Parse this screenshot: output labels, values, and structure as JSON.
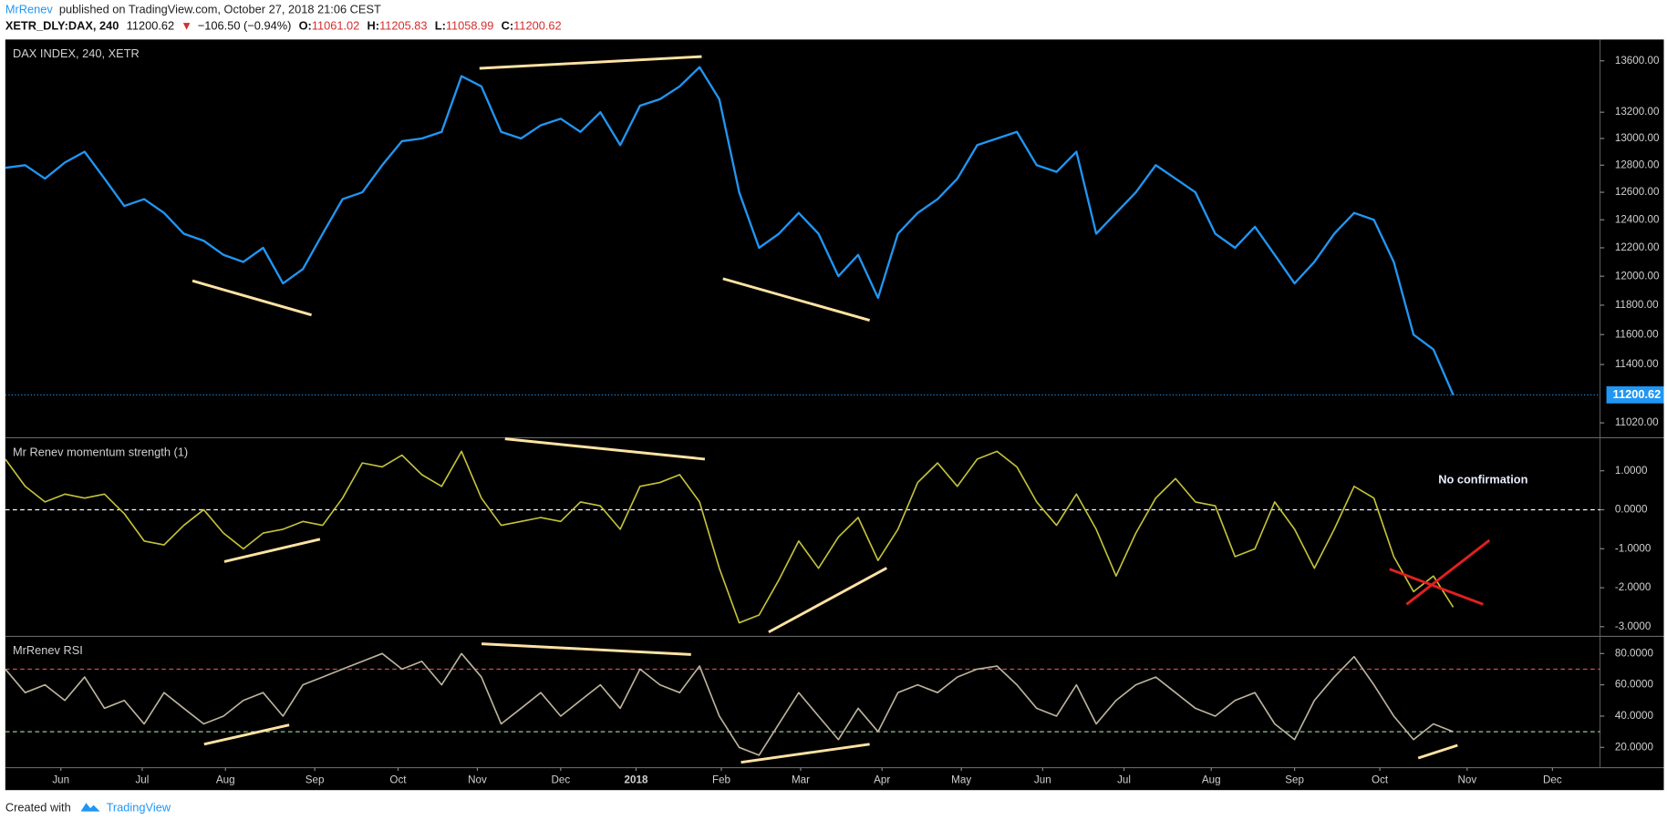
{
  "header": {
    "author": "MrRenev",
    "published": "published on TradingView.com, October 27, 2018 21:06 CEST",
    "symbol": "XETR_DLY:DAX, 240",
    "last": "11200.62",
    "change": "−106.50 (−0.94%)",
    "ohlc": [
      {
        "key": "O:",
        "value": "11061.02"
      },
      {
        "key": "H:",
        "value": "11205.83"
      },
      {
        "key": "L:",
        "value": "11058.99"
      },
      {
        "key": "C:",
        "value": "11200.62"
      }
    ]
  },
  "footer": {
    "created": "Created with",
    "brand": "TradingView"
  },
  "chart_data": [
    {
      "type": "line",
      "title": "DAX INDEX, 240, XETR",
      "log": true,
      "color": "#2196f3",
      "price_line": true,
      "x": [
        0,
        1,
        2,
        3,
        4,
        5,
        6,
        7,
        8,
        9,
        10,
        11,
        12,
        13,
        14,
        15,
        16,
        17,
        18,
        19,
        20,
        21,
        22,
        23,
        24,
        25,
        26,
        27,
        28,
        29,
        30,
        31,
        32,
        33,
        34,
        35,
        36,
        37,
        38,
        39,
        40,
        41,
        42,
        43,
        44,
        45,
        46,
        47,
        48,
        49,
        50,
        51,
        52,
        53,
        54,
        55,
        56,
        57,
        58,
        59,
        60,
        61,
        62,
        63,
        64,
        65,
        66,
        67,
        68,
        69,
        70,
        71,
        72,
        73
      ],
      "values": [
        12780,
        12800,
        12700,
        12820,
        12900,
        12700,
        12500,
        12550,
        12450,
        12300,
        12250,
        12150,
        12100,
        12200,
        11950,
        12050,
        12300,
        12550,
        12600,
        12800,
        12980,
        13000,
        13050,
        13480,
        13400,
        13050,
        13000,
        13100,
        13150,
        13050,
        13200,
        12950,
        13250,
        13300,
        13400,
        13550,
        13300,
        12600,
        12200,
        12300,
        12450,
        12300,
        12000,
        12150,
        11850,
        12300,
        12450,
        12550,
        12700,
        12950,
        13000,
        13050,
        12800,
        12750,
        12900,
        12300,
        12450,
        12600,
        12800,
        12700,
        12600,
        12300,
        12200,
        12350,
        12150,
        11950,
        12100,
        12300,
        12450,
        12400,
        12100,
        11600,
        11500,
        11200.62
      ],
      "xlim": [
        0,
        80.4
      ],
      "ylim": [
        10925,
        13761
      ],
      "yticks": [
        {
          "value": 11020,
          "label": "11020.00"
        },
        {
          "value": 11400,
          "label": "11400.00"
        },
        {
          "value": 11600,
          "label": "11600.00"
        },
        {
          "value": 11800,
          "label": "11800.00"
        },
        {
          "value": 12000,
          "label": "12000.00"
        },
        {
          "value": 12200,
          "label": "12200.00"
        },
        {
          "value": 12400,
          "label": "12400.00"
        },
        {
          "value": 12600,
          "label": "12600.00"
        },
        {
          "value": 12800,
          "label": "12800.00"
        },
        {
          "value": 13000,
          "label": "13000.00"
        },
        {
          "value": 13200,
          "label": "13200.00"
        },
        {
          "value": 13600,
          "label": "13600.00"
        }
      ]
    },
    {
      "type": "line",
      "title": "Mr Renev momentum strength (1)",
      "color": "#c4c23a",
      "annotation": "No confirmation",
      "x": [
        0,
        1,
        2,
        3,
        4,
        5,
        6,
        7,
        8,
        9,
        10,
        11,
        12,
        13,
        14,
        15,
        16,
        17,
        18,
        19,
        20,
        21,
        22,
        23,
        24,
        25,
        26,
        27,
        28,
        29,
        30,
        31,
        32,
        33,
        34,
        35,
        36,
        37,
        38,
        39,
        40,
        41,
        42,
        43,
        44,
        45,
        46,
        47,
        48,
        49,
        50,
        51,
        52,
        53,
        54,
        55,
        56,
        57,
        58,
        59,
        60,
        61,
        62,
        63,
        64,
        65,
        66,
        67,
        68,
        69,
        70,
        71,
        72,
        73
      ],
      "values": [
        1.3,
        0.6,
        0.2,
        0.4,
        0.3,
        0.4,
        -0.1,
        -0.8,
        -0.9,
        -0.4,
        0.0,
        -0.6,
        -1.0,
        -0.6,
        -0.5,
        -0.3,
        -0.4,
        0.3,
        1.2,
        1.1,
        1.4,
        0.9,
        0.6,
        1.5,
        0.3,
        -0.4,
        -0.3,
        -0.2,
        -0.3,
        0.2,
        0.1,
        -0.5,
        0.6,
        0.7,
        0.9,
        0.2,
        -1.5,
        -2.9,
        -2.7,
        -1.8,
        -0.8,
        -1.5,
        -0.7,
        -0.2,
        -1.3,
        -0.5,
        0.7,
        1.2,
        0.6,
        1.3,
        1.5,
        1.1,
        0.2,
        -0.4,
        0.4,
        -0.5,
        -1.7,
        -0.6,
        0.3,
        0.8,
        0.2,
        0.1,
        -1.2,
        -1.0,
        0.2,
        -0.5,
        -1.5,
        -0.5,
        0.6,
        0.3,
        -1.2,
        -2.1,
        -1.7,
        -2.5
      ],
      "xlim": [
        0,
        80.4
      ],
      "ylim": [
        -3.22,
        1.82
      ],
      "yticks": [
        {
          "value": 1,
          "label": "1.0000"
        },
        {
          "value": 0,
          "label": "0.0000"
        },
        {
          "value": -1,
          "label": "-1.0000"
        },
        {
          "value": -2,
          "label": "-2.0000"
        },
        {
          "value": -3,
          "label": "-3.0000"
        }
      ],
      "hlines": [
        {
          "value": 0,
          "color": "#ffffff"
        }
      ]
    },
    {
      "type": "line",
      "title": "MrRenev RSI",
      "color": "#bdb49b",
      "x": [
        0,
        1,
        2,
        3,
        4,
        5,
        6,
        7,
        8,
        9,
        10,
        11,
        12,
        13,
        14,
        15,
        16,
        17,
        18,
        19,
        20,
        21,
        22,
        23,
        24,
        25,
        26,
        27,
        28,
        29,
        30,
        31,
        32,
        33,
        34,
        35,
        36,
        37,
        38,
        39,
        40,
        41,
        42,
        43,
        44,
        45,
        46,
        47,
        48,
        49,
        50,
        51,
        52,
        53,
        54,
        55,
        56,
        57,
        58,
        59,
        60,
        61,
        62,
        63,
        64,
        65,
        66,
        67,
        68,
        69,
        70,
        71,
        72,
        73
      ],
      "values": [
        70,
        55,
        60,
        50,
        65,
        45,
        50,
        35,
        55,
        45,
        35,
        40,
        50,
        55,
        40,
        60,
        65,
        70,
        75,
        80,
        70,
        75,
        60,
        80,
        65,
        35,
        45,
        55,
        40,
        50,
        60,
        45,
        70,
        60,
        55,
        72,
        40,
        20,
        15,
        35,
        55,
        40,
        25,
        45,
        30,
        55,
        60,
        55,
        65,
        70,
        72,
        60,
        45,
        40,
        60,
        35,
        50,
        60,
        65,
        55,
        45,
        40,
        50,
        55,
        35,
        25,
        50,
        65,
        78,
        60,
        40,
        25,
        35,
        30
      ],
      "xlim": [
        0,
        80.4
      ],
      "ylim": [
        7.7,
        90.3
      ],
      "yticks": [
        {
          "value": 80,
          "label": "80.0000"
        },
        {
          "value": 60,
          "label": "60.0000"
        },
        {
          "value": 40,
          "label": "40.0000"
        },
        {
          "value": 20,
          "label": "20.0000"
        }
      ],
      "hlines": [
        {
          "value": 70,
          "color": "#d9534f"
        },
        {
          "value": 30,
          "color": "#8fc98f"
        }
      ],
      "xticks": [
        {
          "value": 2.8,
          "label": "Jun"
        },
        {
          "value": 6.9,
          "label": "Jul"
        },
        {
          "value": 11.1,
          "label": "Aug"
        },
        {
          "value": 15.6,
          "label": "Sep"
        },
        {
          "value": 19.8,
          "label": "Oct"
        },
        {
          "value": 23.8,
          "label": "Nov"
        },
        {
          "value": 28.0,
          "label": "Dec"
        },
        {
          "value": 31.8,
          "label": "2018"
        },
        {
          "value": 36.1,
          "label": "Feb"
        },
        {
          "value": 40.1,
          "label": "Mar"
        },
        {
          "value": 44.2,
          "label": "Apr"
        },
        {
          "value": 48.2,
          "label": "May"
        },
        {
          "value": 52.3,
          "label": "Jun"
        },
        {
          "value": 56.4,
          "label": "Jul"
        },
        {
          "value": 60.8,
          "label": "Aug"
        },
        {
          "value": 65.0,
          "label": "Sep"
        },
        {
          "value": 69.3,
          "label": "Oct"
        },
        {
          "value": 73.7,
          "label": "Nov"
        },
        {
          "value": 78.0,
          "label": "Dec"
        }
      ]
    }
  ]
}
